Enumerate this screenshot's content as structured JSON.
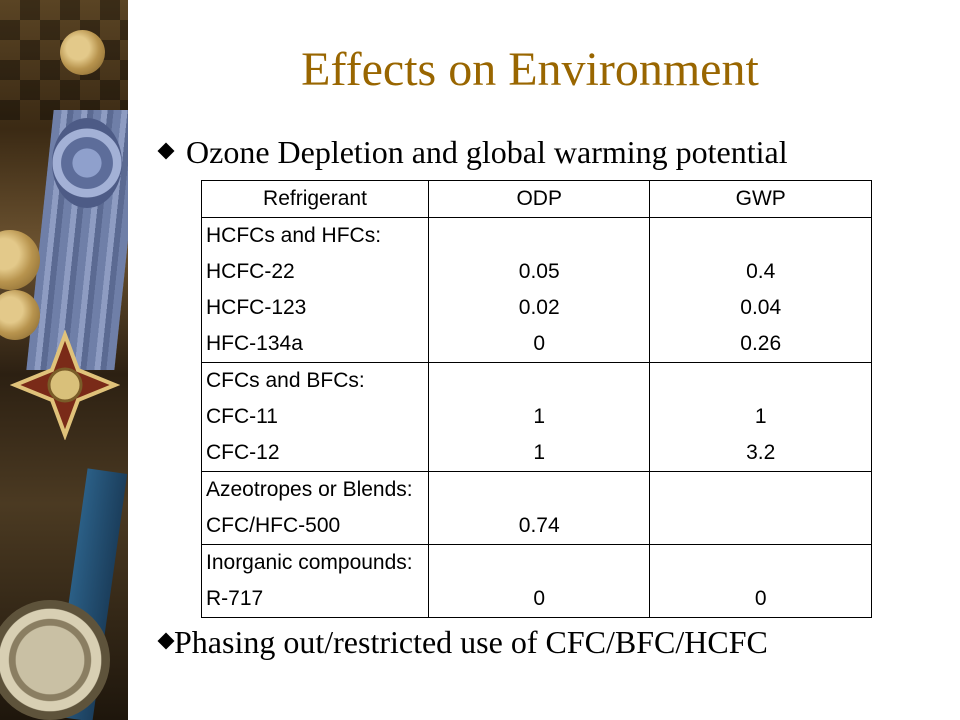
{
  "slide": {
    "title": "Effects on Environment",
    "bullet1": "Ozone Depletion and global warming potential",
    "bullet2": "Phasing out/restricted use of CFC/BFC/HCFC"
  },
  "table": {
    "headers": [
      "Refrigerant",
      "ODP",
      "GWP"
    ],
    "groups": [
      {
        "heading": "HCFCs and HFCs:",
        "rows": [
          {
            "name": "HCFC-22",
            "odp": "0.05",
            "gwp": "0.4"
          },
          {
            "name": "HCFC-123",
            "odp": "0.02",
            "gwp": "0.04"
          },
          {
            "name": "HFC-134a",
            "odp": "0",
            "gwp": "0.26"
          }
        ]
      },
      {
        "heading": "CFCs and BFCs:",
        "rows": [
          {
            "name": "CFC-11",
            "odp": "1",
            "gwp": "1"
          },
          {
            "name": "CFC-12",
            "odp": "1",
            "gwp": "3.2"
          }
        ]
      },
      {
        "heading": "Azeotropes or Blends:",
        "rows": [
          {
            "name": "CFC/HFC-500",
            "odp": "0.74",
            "gwp": ""
          }
        ]
      },
      {
        "heading": "Inorganic compounds:",
        "rows": [
          {
            "name": "R-717",
            "odp": "0",
            "gwp": "0"
          }
        ]
      }
    ]
  }
}
